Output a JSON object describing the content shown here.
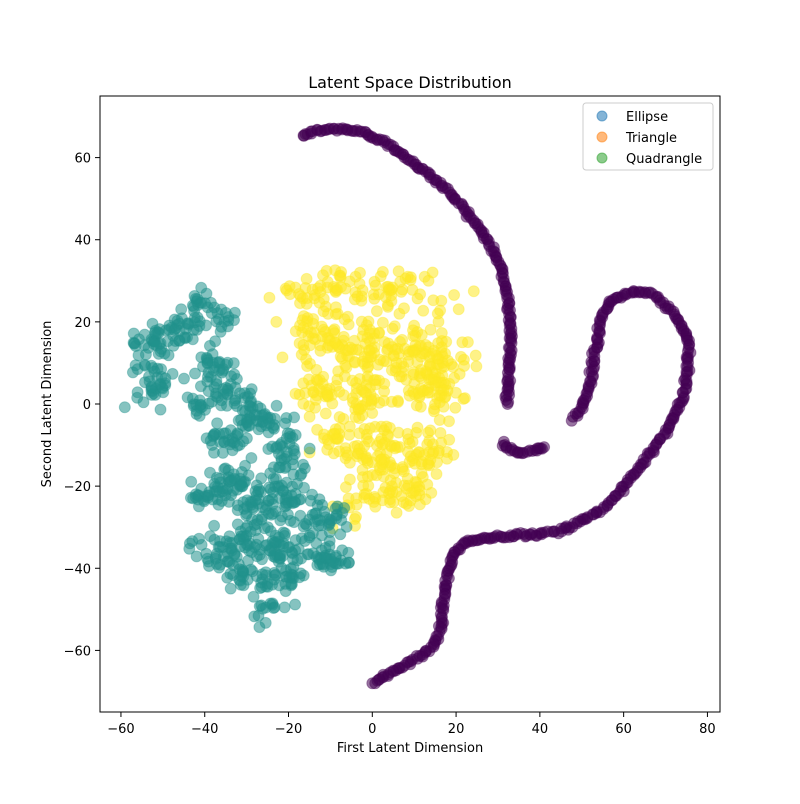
{
  "chart_data": {
    "type": "scatter",
    "title": "Latent Space Distribution",
    "xlabel": "First Latent Dimension",
    "ylabel": "Second Latent Dimension",
    "xlim": [
      -65,
      83
    ],
    "ylim": [
      -75,
      75
    ],
    "xticks": [
      -60,
      -40,
      -20,
      0,
      20,
      40,
      60,
      80
    ],
    "yticks": [
      -60,
      -40,
      -20,
      0,
      20,
      40,
      60
    ],
    "xtick_labels": [
      "−60",
      "−40",
      "−20",
      "0",
      "20",
      "40",
      "60",
      "80"
    ],
    "ytick_labels": [
      "−60",
      "−40",
      "−20",
      "0",
      "20",
      "40",
      "60"
    ],
    "grid": false,
    "legend": {
      "position": "top-right",
      "entries": [
        {
          "name": "Ellipse",
          "color": "#1f77b4"
        },
        {
          "name": "Triangle",
          "color": "#ff7f0e"
        },
        {
          "name": "Quadrangle",
          "color": "#2ca02c"
        }
      ]
    },
    "series": [
      {
        "name": "Ellipse",
        "color": "#440154",
        "shape": "curve",
        "points": [
          [
            -17,
            65.5
          ],
          [
            -14,
            66.3
          ],
          [
            -11,
            66.8
          ],
          [
            -8,
            67
          ],
          [
            -5,
            66.7
          ],
          [
            -2,
            66
          ],
          [
            1,
            64.8
          ],
          [
            4,
            63
          ],
          [
            7,
            61
          ],
          [
            10,
            58.6
          ],
          [
            13,
            56.3
          ],
          [
            16,
            53.7
          ],
          [
            19,
            51
          ],
          [
            22,
            47.5
          ],
          [
            25,
            43.5
          ],
          [
            28,
            39
          ],
          [
            30,
            35
          ],
          [
            31.5,
            30
          ],
          [
            32.5,
            25
          ],
          [
            33,
            20
          ],
          [
            33,
            15
          ],
          [
            32.8,
            10
          ],
          [
            32.5,
            5
          ],
          [
            32.3,
            0
          ]
        ]
      },
      {
        "name": "Ellipse",
        "color": "#440154",
        "shape": "curve",
        "points": [
          [
            31,
            -9.5
          ],
          [
            32,
            -10.5
          ],
          [
            33.5,
            -11.5
          ],
          [
            35,
            -11.8
          ],
          [
            37,
            -11.8
          ],
          [
            39,
            -11.3
          ],
          [
            41,
            -10.5
          ]
        ]
      },
      {
        "name": "Ellipse",
        "color": "#440154",
        "shape": "curve",
        "points": [
          [
            48,
            -3.5
          ],
          [
            50,
            -1
          ],
          [
            52,
            5
          ],
          [
            53,
            12
          ],
          [
            54,
            18
          ],
          [
            55,
            22
          ],
          [
            57,
            25
          ],
          [
            60,
            26.5
          ],
          [
            63,
            27.5
          ],
          [
            66,
            27
          ],
          [
            69,
            25
          ],
          [
            72,
            22
          ],
          [
            74,
            19
          ],
          [
            75.3,
            16
          ],
          [
            75.6,
            12
          ],
          [
            75.3,
            8
          ],
          [
            74.5,
            4
          ],
          [
            73.5,
            0
          ],
          [
            72,
            -3
          ],
          [
            70,
            -7
          ],
          [
            67,
            -11
          ],
          [
            64,
            -15
          ],
          [
            61,
            -19
          ],
          [
            58,
            -22.5
          ],
          [
            55,
            -25.5
          ],
          [
            51,
            -28
          ],
          [
            47,
            -30
          ],
          [
            43,
            -31.3
          ],
          [
            39,
            -31.8
          ],
          [
            34,
            -32
          ],
          [
            29,
            -32.5
          ],
          [
            25,
            -33
          ],
          [
            22,
            -34
          ],
          [
            20,
            -36
          ],
          [
            19,
            -38
          ],
          [
            18,
            -41
          ],
          [
            17.5,
            -45
          ],
          [
            16.8,
            -50
          ],
          [
            16.3,
            -55
          ],
          [
            15,
            -58.5
          ],
          [
            12,
            -61
          ],
          [
            9,
            -63
          ],
          [
            6,
            -64.5
          ],
          [
            3,
            -66
          ],
          [
            0,
            -68
          ]
        ]
      },
      {
        "name": "Quadrangle",
        "color": "#fde725",
        "shape": "cloud",
        "blobs": [
          [
            -12,
            28,
            10,
            4
          ],
          [
            5,
            28,
            12,
            5
          ],
          [
            -15,
            15,
            6,
            8
          ],
          [
            -3,
            13,
            10,
            8
          ],
          [
            10,
            12,
            12,
            8
          ],
          [
            17,
            8,
            4,
            8
          ],
          [
            -13,
            3,
            5,
            5
          ],
          [
            -3,
            2,
            8,
            5
          ],
          [
            12,
            2,
            8,
            6
          ],
          [
            0,
            -10,
            12,
            6
          ],
          [
            14,
            -10,
            6,
            5
          ],
          [
            2,
            -18,
            5,
            5
          ],
          [
            10,
            -18,
            6,
            6
          ],
          [
            6,
            -22,
            6,
            4
          ],
          [
            -5,
            -25,
            4,
            4
          ],
          [
            -10,
            -8,
            4,
            4
          ]
        ],
        "count": 620
      },
      {
        "name": "Triangle",
        "color": "#21918c",
        "shape": "cloud",
        "blobs": [
          [
            -52,
            15,
            5,
            5
          ],
          [
            -52,
            5,
            4,
            5
          ],
          [
            -45,
            18,
            4,
            4
          ],
          [
            -41,
            25,
            3,
            4
          ],
          [
            -36,
            20,
            3,
            3
          ],
          [
            -38,
            10,
            4,
            4
          ],
          [
            -36,
            3,
            4,
            4
          ],
          [
            -30,
            0,
            4,
            4
          ],
          [
            -42,
            -1,
            3,
            3
          ],
          [
            -34,
            -8,
            5,
            4
          ],
          [
            -26,
            -4,
            4,
            4
          ],
          [
            -20,
            -12,
            4,
            6
          ],
          [
            -40,
            -22,
            4,
            4
          ],
          [
            -33,
            -20,
            5,
            5
          ],
          [
            -27,
            -25,
            5,
            5
          ],
          [
            -20,
            -22,
            4,
            5
          ],
          [
            -12,
            -28,
            5,
            5
          ],
          [
            -22,
            -35,
            7,
            5
          ],
          [
            -38,
            -36,
            5,
            4
          ],
          [
            -30,
            -33,
            4,
            4
          ],
          [
            -10,
            -38,
            5,
            4
          ],
          [
            -22,
            -43,
            5,
            4
          ],
          [
            -25,
            -50,
            3,
            3
          ],
          [
            -32,
            -42,
            4,
            3
          ]
        ],
        "count": 720
      }
    ]
  }
}
